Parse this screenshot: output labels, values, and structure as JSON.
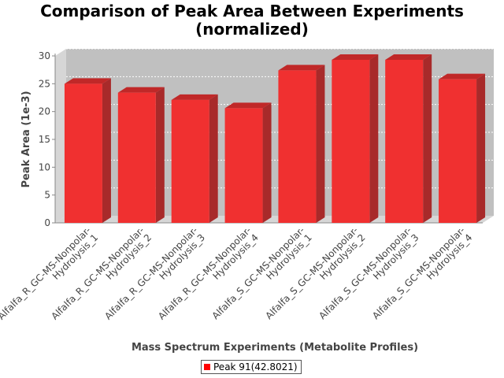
{
  "chart_data": {
    "type": "bar",
    "title_line1": "Comparison of Peak Area Between Experiments",
    "title_line2": "(normalized)",
    "xlabel": "Mass Spectrum Experiments (Metabolite Profiles)",
    "ylabel": "Peak Area (1e-3)",
    "ylim": [
      0,
      30
    ],
    "yticks": [
      0,
      5,
      10,
      15,
      20,
      25,
      30
    ],
    "categories": [
      [
        "Alfalfa_R_GC-MS-Nonpolar-",
        "Hydrolysis_1"
      ],
      [
        "Alfalfa_R_GC-MS-Nonpolar-",
        "Hydrolysis_2"
      ],
      [
        "Alfalfa_R_GC-MS-Nonpolar-",
        "Hydrolysis_3"
      ],
      [
        "Alfalfa_R_GC-MS-Nonpolar-",
        "Hydrolysis_4"
      ],
      [
        "Alfalfa_S_GC-MS-Nonpolar-",
        "Hydrolysis_1"
      ],
      [
        "Alfalfa_S_GC-MS-Nonpolar-",
        "Hydrolysis_2"
      ],
      [
        "Alfalfa_S_GC-MS-Nonpolar-",
        "Hydrolysis_3"
      ],
      [
        "Alfalfa_S_GC-MS-Nonpolar-",
        "Hydrolysis_4"
      ]
    ],
    "series": [
      {
        "name": "Peak 91(42.8021)",
        "values": [
          25.0,
          23.4,
          22.1,
          20.6,
          27.4,
          29.3,
          29.3,
          25.8
        ]
      }
    ],
    "grid": true,
    "legend_position": "bottom",
    "colors": {
      "bar_front": "#f03030",
      "bar_top": "#c02828",
      "bar_side": "#a82a2a",
      "plot_back": "#c0c0c0",
      "plot_floor": "#d6d6d6",
      "gridline": "#ffffff"
    }
  }
}
